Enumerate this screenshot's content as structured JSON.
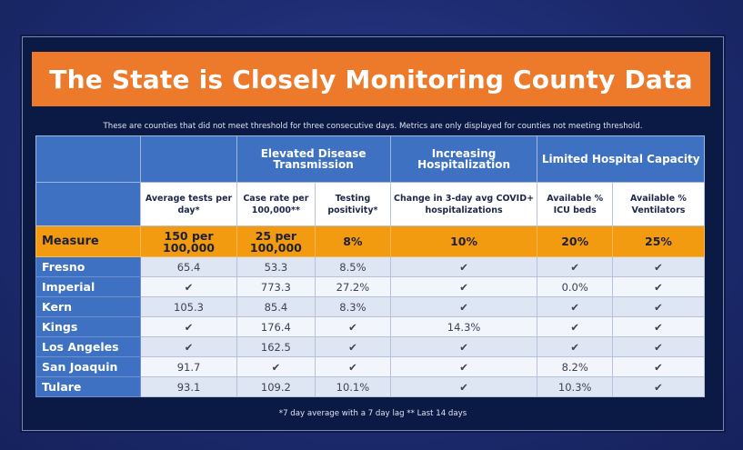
{
  "title": "The State is Closely Monitoring County Data",
  "subtitle": "These are counties that did not meet threshold for three consecutive days. Metrics are only displayed for counties not meeting threshold.",
  "groups": {
    "disease": "Elevated Disease Transmission",
    "hospitalization": "Increasing Hospitalization",
    "capacity": "Limited Hospital Capacity"
  },
  "columns": {
    "tests": "Average tests per day*",
    "case_rate": "Case rate per 100,000**",
    "positivity": "Testing positivity*",
    "change": "Change in 3-day avg COVID+ hospitalizations",
    "icu": "Available % ICU beds",
    "vent": "Available % Ventilators"
  },
  "check_symbol": "✔",
  "measure": {
    "label": "Measure",
    "tests": "150 per 100,000",
    "case_rate": "25 per 100,000",
    "positivity": "8%",
    "change": "10%",
    "icu": "20%",
    "vent": "25%"
  },
  "counties": [
    {
      "name": "Fresno",
      "tests": "65.4",
      "case_rate": "53.3",
      "positivity": "8.5%",
      "change": "✔",
      "icu": "✔",
      "vent": "✔"
    },
    {
      "name": "Imperial",
      "tests": "✔",
      "case_rate": "773.3",
      "positivity": "27.2%",
      "change": "✔",
      "icu": "0.0%",
      "vent": "✔"
    },
    {
      "name": "Kern",
      "tests": "105.3",
      "case_rate": "85.4",
      "positivity": "8.3%",
      "change": "✔",
      "icu": "✔",
      "vent": "✔"
    },
    {
      "name": "Kings",
      "tests": "✔",
      "case_rate": "176.4",
      "positivity": "✔",
      "change": "14.3%",
      "icu": "✔",
      "vent": "✔"
    },
    {
      "name": "Los Angeles",
      "tests": "✔",
      "case_rate": "162.5",
      "positivity": "✔",
      "change": "✔",
      "icu": "✔",
      "vent": "✔"
    },
    {
      "name": "San Joaquin",
      "tests": "91.7",
      "case_rate": "✔",
      "positivity": "✔",
      "change": "✔",
      "icu": "8.2%",
      "vent": "✔"
    },
    {
      "name": "Tulare",
      "tests": "93.1",
      "case_rate": "109.2",
      "positivity": "10.1%",
      "change": "✔",
      "icu": "10.3%",
      "vent": "✔"
    }
  ],
  "footnote": "*7 day average with a 7 day lag ** Last 14 days",
  "colors": {
    "title_bar": "#ec7a2a",
    "header_blue": "#3e71c2",
    "measure_orange": "#f29b11",
    "slide_bg": "#0b1a44"
  }
}
